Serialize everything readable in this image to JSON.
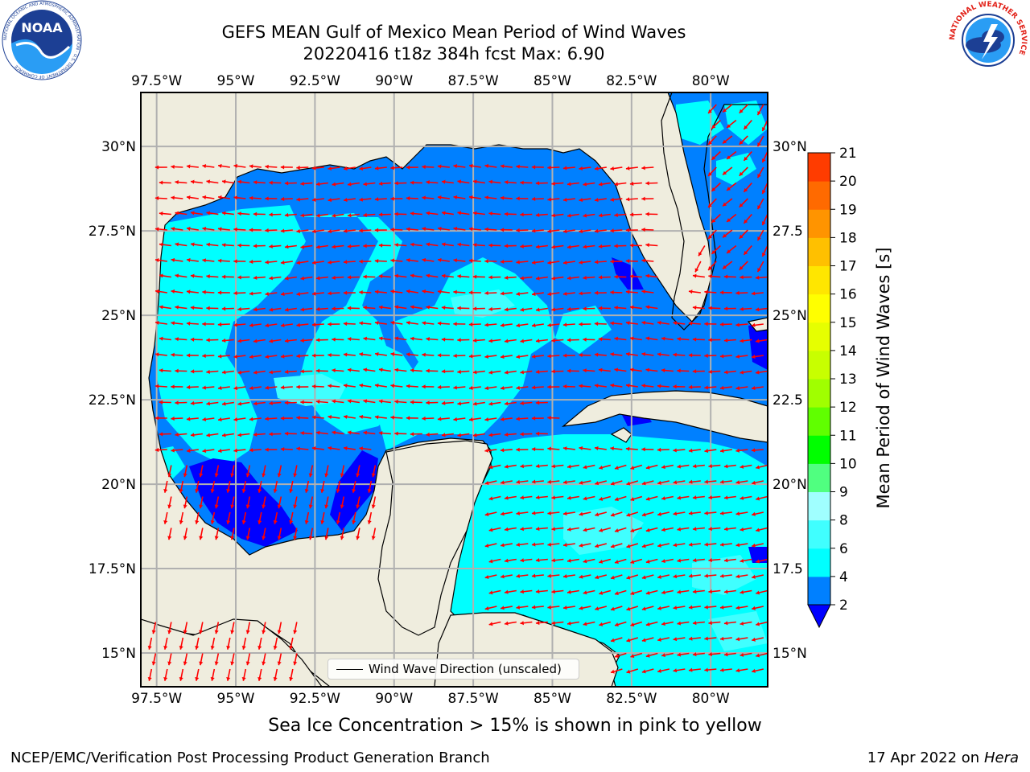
{
  "title": {
    "line1": "GEFS MEAN Gulf of Mexico Mean Period of Wind Waves",
    "line2": "20220416 t18z 384h fcst   Max: 6.90"
  },
  "logos": {
    "left": {
      "text": "NOAA",
      "ring_text": "NATIONAL OCEANIC AND ATMOSPHERIC ADMINISTRATION · U.S. DEPARTMENT OF COMMERCE"
    },
    "right": {
      "ring_text": "NATIONAL WEATHER SERVICE"
    }
  },
  "map": {
    "lon_labels": [
      "97.5°W",
      "95°W",
      "92.5°W",
      "90°W",
      "87.5°W",
      "85°W",
      "82.5°W",
      "80°W"
    ],
    "lon_values": [
      -97.5,
      -95,
      -92.5,
      -90,
      -87.5,
      -85,
      -82.5,
      -80
    ],
    "lat_labels": [
      "30°N",
      "27.5°N",
      "25°N",
      "22.5°N",
      "20°N",
      "17.5°N",
      "15°N"
    ],
    "lat_values": [
      30,
      27.5,
      25,
      22.5,
      20,
      17.5,
      15
    ],
    "right_lat_labels": [
      "30°N",
      "27.5",
      "25°N",
      "22.5",
      "20°N",
      "17.5",
      "15°N"
    ],
    "extent": {
      "lon_min": -98,
      "lon_max": -78.2,
      "lat_min": 14,
      "lat_max": 31.6
    },
    "land_color": "#efedde",
    "legend_label": "Wind Wave Direction (unscaled)",
    "arrow_color": "#ff0000"
  },
  "colorbar": {
    "label": "Mean Period of Wind Waves [s]",
    "ticks": [
      "2",
      "4",
      "6",
      "8",
      "9",
      "10",
      "11",
      "12",
      "13",
      "14",
      "15",
      "16",
      "17",
      "18",
      "19",
      "20",
      "21"
    ],
    "colors": [
      "#0080ff",
      "#00ffff",
      "#40ffff",
      "#a0ffff",
      "#50ff80",
      "#00ff00",
      "#60ff00",
      "#a0ff00",
      "#c8ff00",
      "#e6ff00",
      "#ffff00",
      "#ffe600",
      "#ffc000",
      "#ff9400",
      "#ff6a00",
      "#ff3c00",
      "#ff0000"
    ],
    "under_color": "#0000ff"
  },
  "footer": {
    "note": "Sea Ice Concentration > 15% is shown in pink to yellow",
    "left": "NCEP/EMC/Verification Post Processing Product Generation Branch",
    "right_prefix": "17 Apr 2022 on ",
    "right_host": "Hera"
  }
}
